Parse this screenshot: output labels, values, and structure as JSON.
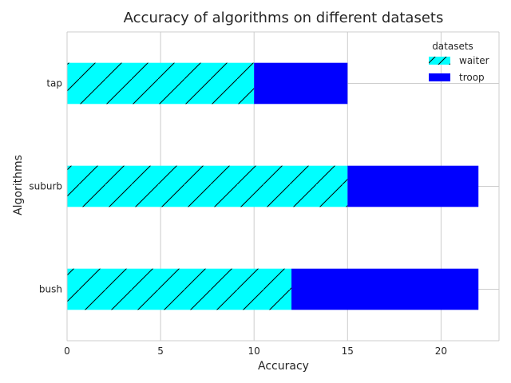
{
  "chart_data": {
    "type": "bar",
    "orientation": "horizontal",
    "stacked": true,
    "title": "Accuracy of algorithms on different datasets",
    "xlabel": "Accuracy",
    "ylabel": "Algorithms",
    "categories": [
      "bush",
      "suburb",
      "tap"
    ],
    "series": [
      {
        "name": "waiter",
        "values": [
          12,
          15,
          10
        ],
        "color": "#00ffff",
        "hatch": "/"
      },
      {
        "name": "troop",
        "values": [
          10,
          7,
          5
        ],
        "color": "#0000ff",
        "hatch": ""
      }
    ],
    "xlim": [
      0,
      23.1
    ],
    "xticks": [
      0,
      5,
      10,
      15,
      20
    ],
    "grid": true,
    "legend": {
      "title": "datasets",
      "placement": "top-right"
    }
  }
}
